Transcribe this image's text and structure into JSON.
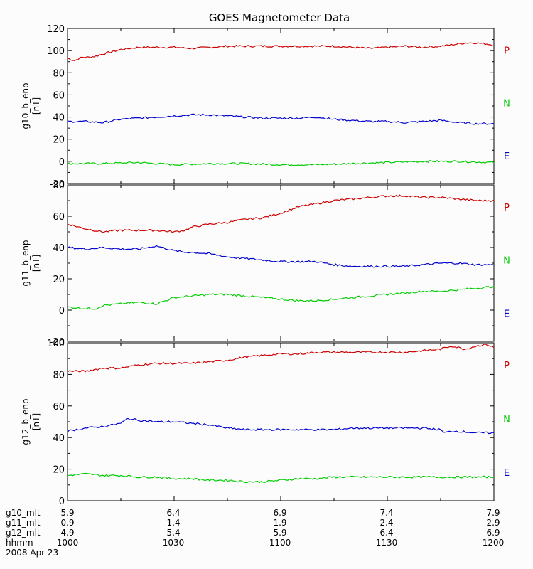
{
  "chart_data": {
    "type": "line",
    "title": "GOES Magnetometer Data",
    "x_range": [
      "1000",
      "1200"
    ],
    "panels": [
      {
        "ylabel": "g10_b_enp",
        "yunit": "[nT]",
        "ylim": [
          -20,
          120
        ],
        "yticks": [
          "-20",
          "0",
          "20",
          "40",
          "60",
          "80",
          "100",
          "120"
        ],
        "series": [
          {
            "name": "P",
            "color": "#cc0000",
            "t": [
              0,
              2,
              4,
              6,
              8,
              10,
              15,
              20,
              25,
              30,
              35,
              40,
              45,
              50,
              55,
              60,
              65,
              70,
              75,
              80,
              85,
              90,
              95,
              100,
              105,
              110,
              112,
              115,
              118,
              120
            ],
            "values": [
              93,
              91,
              94,
              94,
              95,
              97,
              101,
              103,
              103,
              103,
              102,
              103,
              104,
              104,
              104,
              104,
              104,
              104,
              104,
              103,
              102,
              103,
              104,
              103,
              104,
              106,
              107,
              107,
              106,
              105
            ]
          },
          {
            "name": "N",
            "color": "#00cc00",
            "t": [
              0,
              10,
              20,
              30,
              40,
              50,
              60,
              70,
              80,
              90,
              100,
              110,
              120
            ],
            "values": [
              -2,
              -2,
              -1,
              -3,
              -2,
              -2,
              -3,
              -3,
              -2,
              -1,
              0,
              0,
              -1
            ]
          },
          {
            "name": "E",
            "color": "#0000cc",
            "t": [
              0,
              5,
              10,
              15,
              20,
              25,
              30,
              35,
              40,
              45,
              50,
              55,
              60,
              65,
              70,
              75,
              80,
              85,
              90,
              95,
              100,
              105,
              110,
              115,
              120
            ],
            "values": [
              36,
              36,
              35,
              38,
              39,
              40,
              41,
              42,
              42,
              41,
              40,
              39,
              39,
              39,
              40,
              38,
              37,
              36,
              36,
              35,
              36,
              37,
              35,
              34,
              34
            ]
          }
        ]
      },
      {
        "ylabel": "g11_b_enp",
        "yunit": "[nT]",
        "ylim": [
          -20,
          80
        ],
        "yticks": [
          "-20",
          "0",
          "20",
          "40",
          "60",
          "80"
        ],
        "series": [
          {
            "name": "P",
            "color": "#cc0000",
            "t": [
              0,
              5,
              10,
              15,
              20,
              25,
              30,
              33,
              35,
              40,
              45,
              50,
              55,
              60,
              65,
              70,
              75,
              80,
              85,
              90,
              95,
              100,
              105,
              110,
              115,
              120
            ],
            "values": [
              55,
              52,
              50,
              51,
              51,
              51,
              50,
              51,
              53,
              55,
              56,
              58,
              59,
              62,
              66,
              68,
              70,
              71,
              72,
              73,
              73,
              72,
              72,
              71,
              70,
              70
            ]
          },
          {
            "name": "N",
            "color": "#00cc00",
            "t": [
              0,
              5,
              8,
              10,
              15,
              20,
              25,
              30,
              35,
              40,
              45,
              50,
              55,
              60,
              65,
              70,
              75,
              80,
              85,
              90,
              95,
              100,
              105,
              110,
              115,
              120
            ],
            "values": [
              2,
              1,
              1,
              3,
              4,
              5,
              4,
              8,
              9,
              10,
              10,
              9,
              8,
              7,
              6,
              6,
              7,
              8,
              9,
              10,
              11,
              12,
              12,
              13,
              14,
              15
            ]
          },
          {
            "name": "E",
            "color": "#0000cc",
            "t": [
              0,
              5,
              10,
              15,
              20,
              25,
              30,
              33,
              35,
              40,
              45,
              50,
              55,
              60,
              65,
              70,
              75,
              80,
              85,
              90,
              95,
              100,
              105,
              110,
              115,
              120
            ],
            "values": [
              40,
              39,
              40,
              39,
              39,
              41,
              38,
              37,
              37,
              36,
              34,
              33,
              32,
              31,
              31,
              31,
              29,
              28,
              28,
              28,
              28,
              29,
              30,
              30,
              29,
              29
            ]
          }
        ]
      },
      {
        "ylabel": "g12_b_enp",
        "yunit": "[nT]",
        "ylim": [
          0,
          100
        ],
        "yticks": [
          "0",
          "20",
          "40",
          "60",
          "80",
          "100"
        ],
        "series": [
          {
            "name": "P",
            "color": "#cc0000",
            "t": [
              0,
              5,
              10,
              15,
              20,
              25,
              30,
              35,
              40,
              45,
              50,
              55,
              60,
              65,
              70,
              75,
              80,
              85,
              90,
              95,
              100,
              105,
              108,
              110,
              112,
              115,
              118,
              120
            ],
            "values": [
              82,
              82,
              84,
              84,
              86,
              87,
              87,
              87,
              88,
              89,
              91,
              92,
              93,
              93,
              94,
              94,
              94,
              94,
              94,
              94,
              95,
              96,
              98,
              97,
              96,
              98,
              99,
              97
            ]
          },
          {
            "name": "N",
            "color": "#00cc00",
            "t": [
              0,
              5,
              10,
              15,
              20,
              25,
              30,
              35,
              40,
              45,
              50,
              55,
              60,
              65,
              70,
              75,
              80,
              85,
              90,
              95,
              100,
              105,
              110,
              115,
              120
            ],
            "values": [
              16,
              17,
              16,
              16,
              15,
              15,
              14,
              14,
              13,
              13,
              12,
              12,
              13,
              14,
              14,
              15,
              15,
              15,
              15,
              15,
              15,
              15,
              15,
              15,
              15
            ]
          },
          {
            "name": "E",
            "color": "#0000cc",
            "t": [
              0,
              5,
              10,
              15,
              17,
              20,
              25,
              30,
              35,
              40,
              45,
              50,
              55,
              60,
              65,
              70,
              75,
              80,
              85,
              90,
              95,
              100,
              105,
              106,
              108,
              110,
              115,
              120
            ],
            "values": [
              44,
              46,
              47,
              49,
              52,
              51,
              50,
              50,
              49,
              48,
              46,
              45,
              45,
              45,
              45,
              45,
              45,
              46,
              46,
              46,
              46,
              46,
              45,
              43,
              44,
              44,
              43,
              43
            ]
          }
        ]
      }
    ],
    "right_labels": [
      {
        "text": "P",
        "color": "#cc0000"
      },
      {
        "text": "N",
        "color": "#00cc00"
      },
      {
        "text": "E",
        "color": "#0000cc"
      }
    ]
  },
  "bottom_table": {
    "rows": [
      {
        "label": "g10_mlt",
        "values": [
          "5.9",
          "6.4",
          "6.9",
          "7.4",
          "7.9"
        ]
      },
      {
        "label": "g11_mlt",
        "values": [
          "0.9",
          "1.4",
          "1.9",
          "2.4",
          "2.9"
        ]
      },
      {
        "label": "g12_mlt",
        "values": [
          "4.9",
          "5.4",
          "5.9",
          "6.4",
          "6.9"
        ]
      },
      {
        "label": "hhmm",
        "values": [
          "1000",
          "1030",
          "1100",
          "1130",
          "1200"
        ]
      }
    ],
    "date": "2008 Apr 23"
  }
}
